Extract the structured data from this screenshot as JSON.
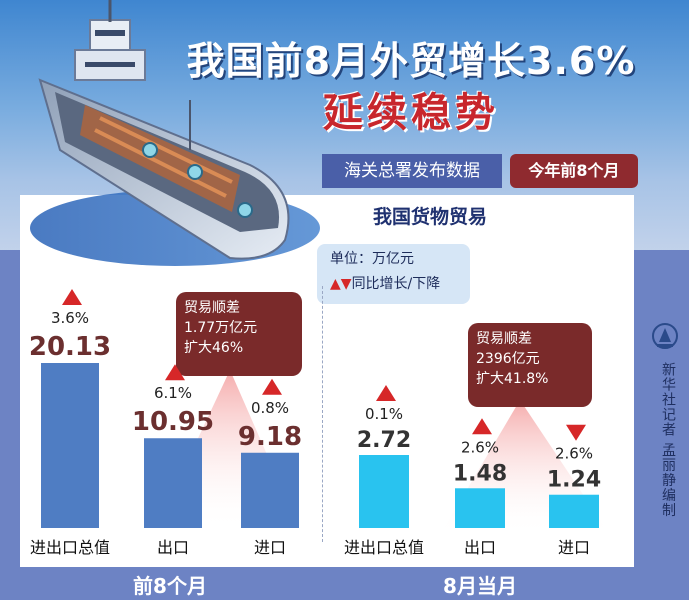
{
  "header": {
    "title": "我国前8月外贸增长3.6%",
    "subtitle_red": "延续稳势",
    "source_label": "海关总署发布数据",
    "period_label": "今年前8个月"
  },
  "panel": {
    "chart_title": "我国货物贸易",
    "unit": "单位：万亿元",
    "legend_label": "同比增长/下降",
    "footer_left": "前8个月",
    "footer_right": "8月当月"
  },
  "callouts": {
    "left": [
      "贸易顺差",
      "1.77万亿元",
      "扩大46%"
    ],
    "right": [
      "贸易顺差",
      "2396亿元",
      "扩大41.8%"
    ]
  },
  "credit": "新华社记者 孟丽静编制",
  "colors": {
    "bar_left": "#4f7dc3",
    "bar_right": "#29c3ef",
    "up": "#d62728",
    "down": "#d62728",
    "value_left": "#6b2f2f",
    "value_right": "#333333"
  },
  "chart_data": [
    {
      "type": "bar",
      "title": "前8个月",
      "categories": [
        "进出口总值",
        "出口",
        "进口"
      ],
      "values": [
        20.13,
        10.95,
        9.18
      ],
      "value_labels": [
        "20.13",
        "10.95",
        "9.18"
      ],
      "growth": [
        "3.6%",
        "6.1%",
        "0.8%"
      ],
      "direction": [
        "up",
        "up",
        "up"
      ]
    },
    {
      "type": "bar",
      "title": "8月当月",
      "categories": [
        "进出口总值",
        "出口",
        "进口"
      ],
      "values": [
        2.72,
        1.48,
        1.24
      ],
      "value_labels": [
        "2.72",
        "1.48",
        "1.24"
      ],
      "growth": [
        "0.1%",
        "2.6%",
        "2.6%"
      ],
      "direction": [
        "up",
        "up",
        "down"
      ]
    }
  ]
}
